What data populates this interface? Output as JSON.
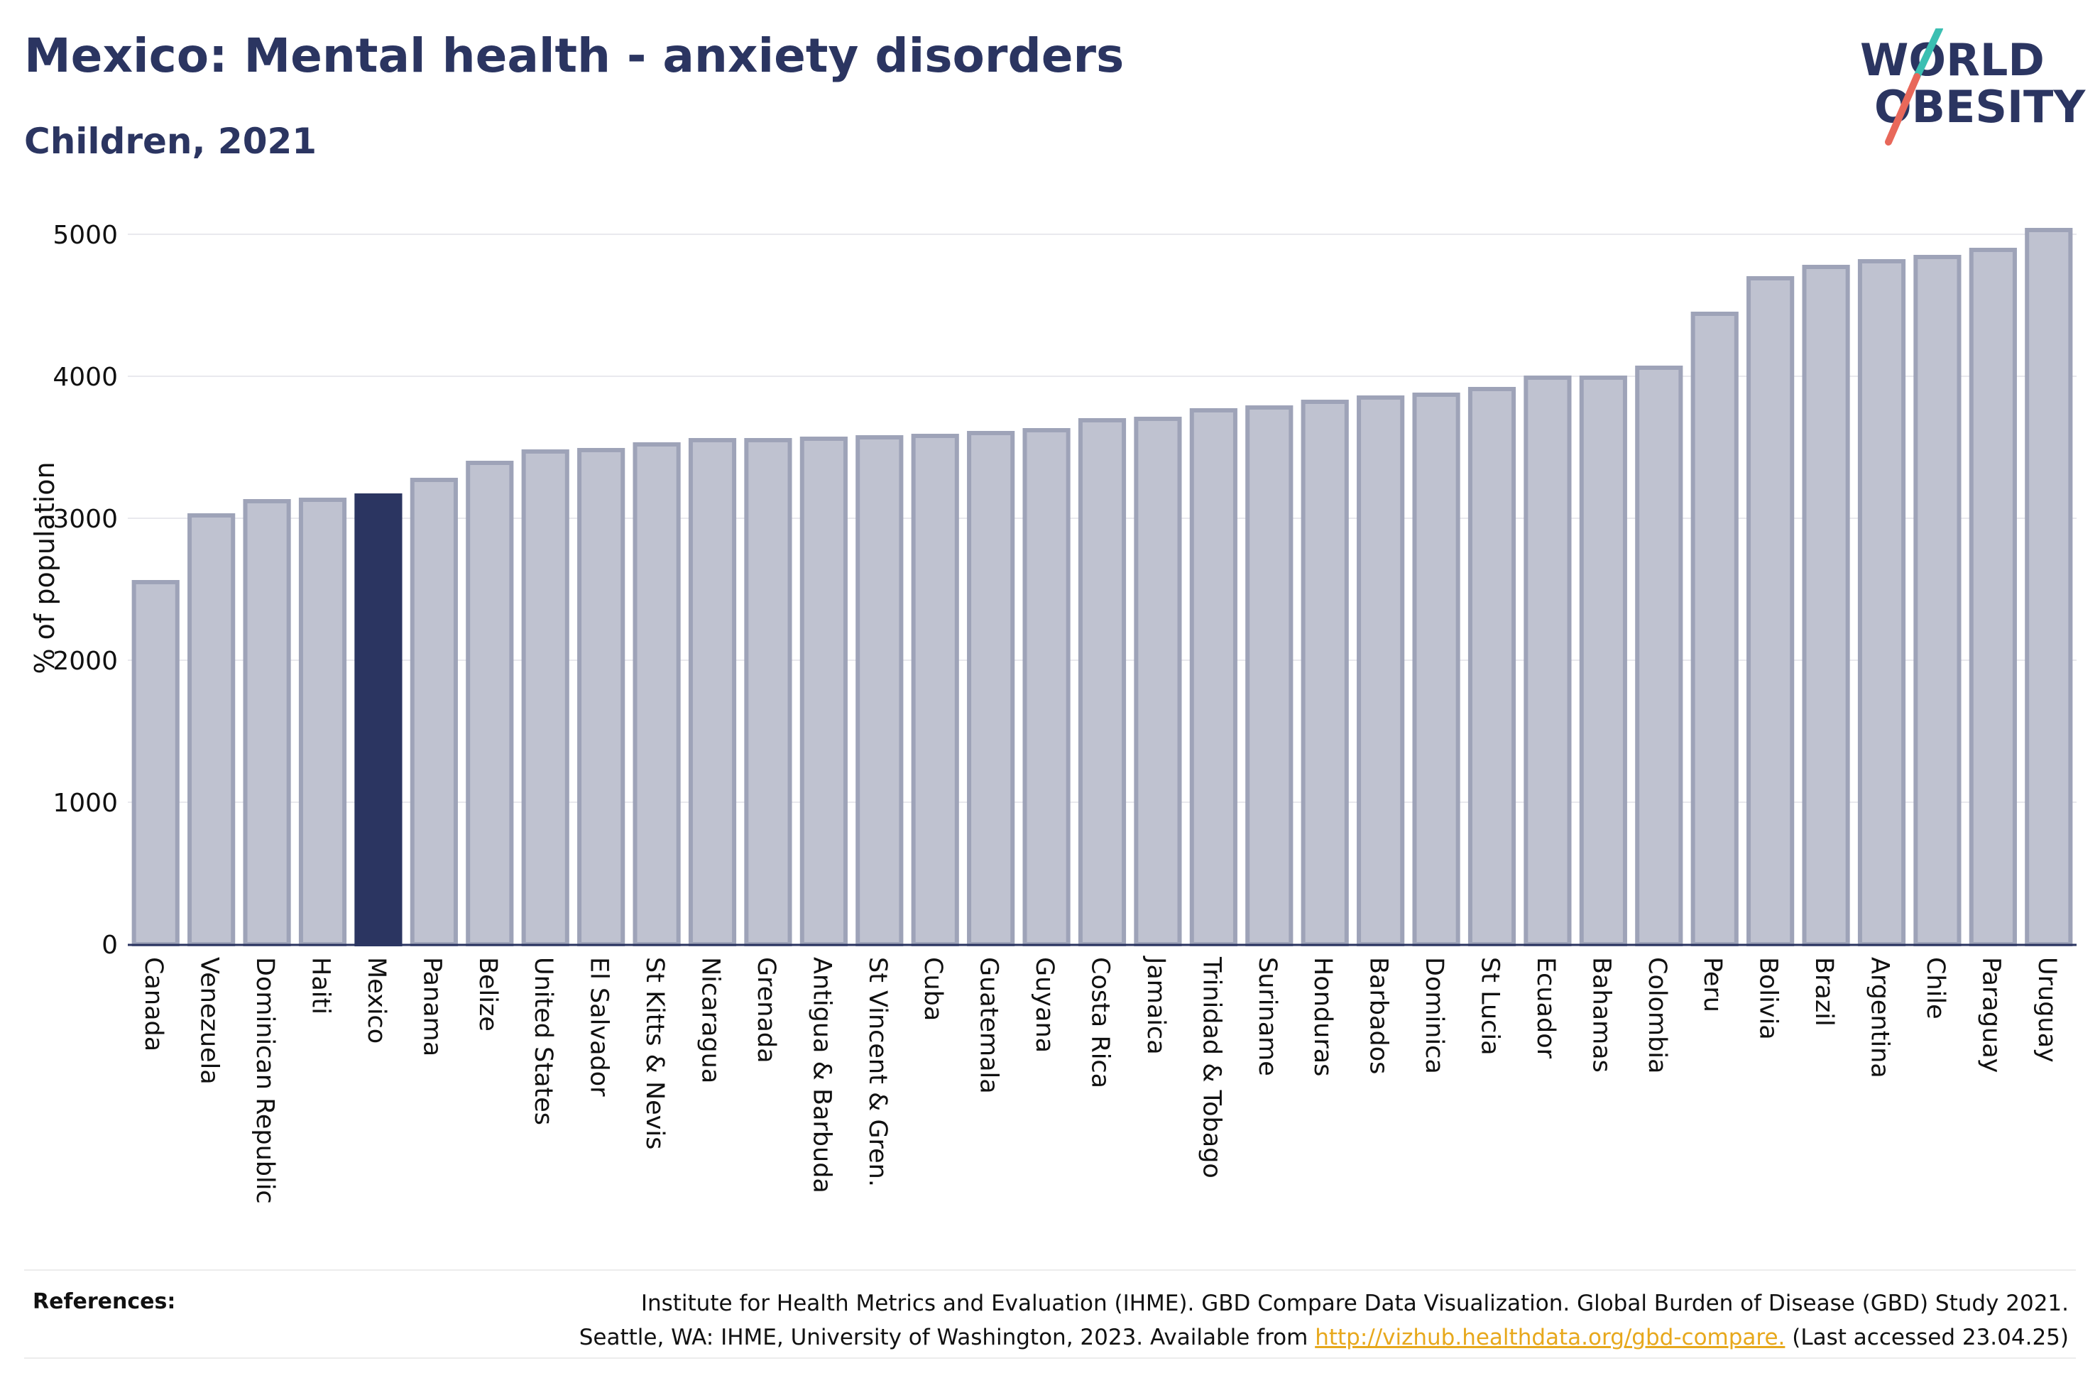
{
  "header": {
    "title": "Mexico: Mental health - anxiety disorders",
    "subtitle": "Children, 2021"
  },
  "logo": {
    "line1": "WORLD",
    "line2": "OBESITY"
  },
  "colors": {
    "highlight": "#2b3561",
    "bar": "#bfc2d0",
    "bar_border": "#9ea3b8",
    "title": "#2b3561",
    "link": "#e7a81c"
  },
  "chart_data": {
    "type": "bar",
    "ylabel": "% of population",
    "ylim": [
      0,
      5000
    ],
    "yticks": [
      0,
      1000,
      2000,
      3000,
      4000,
      5000
    ],
    "highlight": "Mexico",
    "categories": [
      "Canada",
      "Venezuela",
      "Dominican Republic",
      "Haiti",
      "Mexico",
      "Panama",
      "Belize",
      "United States",
      "El Salvador",
      "St Kitts & Nevis",
      "Nicaragua",
      "Grenada",
      "Antigua & Barbuda",
      "St Vincent & Gren.",
      "Cuba",
      "Guatemala",
      "Guyana",
      "Costa Rica",
      "Jamaica",
      "Trinidad & Tobago",
      "Suriname",
      "Honduras",
      "Barbados",
      "Dominica",
      "St Lucia",
      "Ecuador",
      "Bahamas",
      "Colombia",
      "Peru",
      "Bolivia",
      "Brazil",
      "Argentina",
      "Chile",
      "Paraguay",
      "Uruguay"
    ],
    "values": [
      2550,
      3020,
      3120,
      3130,
      3160,
      3270,
      3390,
      3470,
      3480,
      3520,
      3550,
      3550,
      3560,
      3570,
      3580,
      3600,
      3620,
      3690,
      3700,
      3760,
      3780,
      3820,
      3850,
      3870,
      3910,
      3990,
      3990,
      4060,
      4440,
      4690,
      4770,
      4810,
      4840,
      4890,
      5030
    ]
  },
  "references": {
    "label": "References:",
    "line1": "Institute for Health Metrics and Evaluation (IHME). GBD Compare Data Visualization. Global Burden of Disease (GBD) Study 2021.",
    "line2_pre": "Seattle, WA: IHME, University of Washington, 2023. Available from ",
    "link": "http://vizhub.healthdata.org/gbd-compare.",
    "line2_post": " (Last accessed 23.04.25)"
  }
}
